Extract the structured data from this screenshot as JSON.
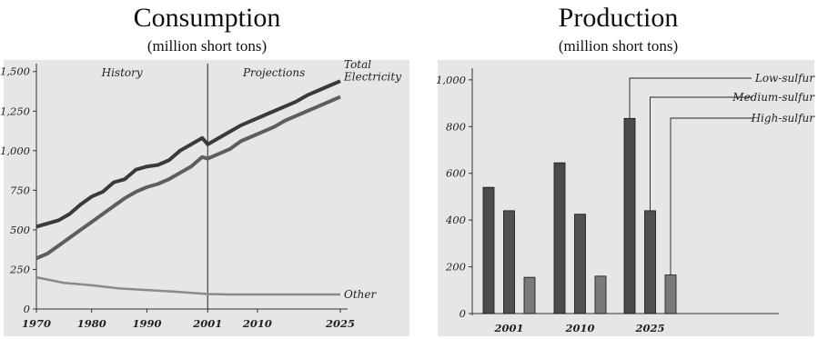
{
  "chart_data": [
    {
      "type": "line",
      "title": "Consumption",
      "subtitle": "(million short tons)",
      "ylim": [
        0,
        1550
      ],
      "xlim": [
        1970,
        2025
      ],
      "y_ticks": [
        0,
        250,
        500,
        750,
        1000,
        1250,
        1500
      ],
      "y_tick_labels": [
        "0",
        "250",
        "500",
        "750",
        "1,000",
        "1,250",
        "1,500"
      ],
      "x_ticks": [
        1970,
        1980,
        1990,
        2001,
        2010,
        2025
      ],
      "x_tick_labels": [
        "1970",
        "1980",
        "1990",
        "2001",
        "2010",
        "2025"
      ],
      "divider_year": 2001,
      "region_labels": [
        "History",
        "Projections"
      ],
      "series": [
        {
          "name": "Total",
          "color": "#3a3a3a",
          "x": [
            1970,
            1972,
            1974,
            1976,
            1978,
            1980,
            1982,
            1984,
            1986,
            1988,
            1990,
            1992,
            1994,
            1996,
            1998,
            2000,
            2001,
            2003,
            2005,
            2007,
            2009,
            2011,
            2013,
            2015,
            2017,
            2019,
            2021,
            2023,
            2025
          ],
          "y": [
            520,
            540,
            560,
            600,
            660,
            710,
            740,
            800,
            820,
            880,
            900,
            910,
            940,
            1000,
            1040,
            1080,
            1040,
            1080,
            1120,
            1160,
            1190,
            1220,
            1250,
            1280,
            1310,
            1350,
            1380,
            1410,
            1440
          ]
        },
        {
          "name": "Electricity",
          "color": "#5e5e5e",
          "x": [
            1970,
            1972,
            1974,
            1976,
            1978,
            1980,
            1982,
            1984,
            1986,
            1988,
            1990,
            1992,
            1994,
            1996,
            1998,
            2000,
            2001,
            2003,
            2005,
            2007,
            2009,
            2011,
            2013,
            2015,
            2017,
            2019,
            2021,
            2023,
            2025
          ],
          "y": [
            320,
            350,
            400,
            450,
            500,
            550,
            600,
            650,
            700,
            740,
            770,
            790,
            820,
            860,
            900,
            960,
            950,
            980,
            1010,
            1060,
            1090,
            1120,
            1150,
            1190,
            1220,
            1250,
            1280,
            1310,
            1340
          ]
        },
        {
          "name": "Other",
          "color": "#8a8a8a",
          "x": [
            1970,
            1975,
            1980,
            1985,
            1990,
            1995,
            2001,
            2005,
            2010,
            2015,
            2020,
            2025
          ],
          "y": [
            200,
            165,
            150,
            130,
            120,
            110,
            95,
            92,
            92,
            92,
            92,
            92
          ]
        }
      ]
    },
    {
      "type": "bar",
      "title": "Production",
      "subtitle": "(million short tons)",
      "ylim": [
        0,
        1050
      ],
      "y_ticks": [
        0,
        200,
        400,
        600,
        800,
        1000
      ],
      "y_tick_labels": [
        "0",
        "200",
        "400",
        "600",
        "800",
        "1,000"
      ],
      "categories": [
        "2001",
        "2010",
        "2025"
      ],
      "series": [
        {
          "name": "Low-sulfur",
          "color": "#4a4a4a",
          "values": [
            540,
            645,
            835
          ]
        },
        {
          "name": "Medium-sulfur",
          "color": "#505050",
          "values": [
            440,
            425,
            440
          ]
        },
        {
          "name": "High-sulfur",
          "color": "#7a7a7a",
          "values": [
            155,
            160,
            165
          ]
        }
      ]
    }
  ]
}
